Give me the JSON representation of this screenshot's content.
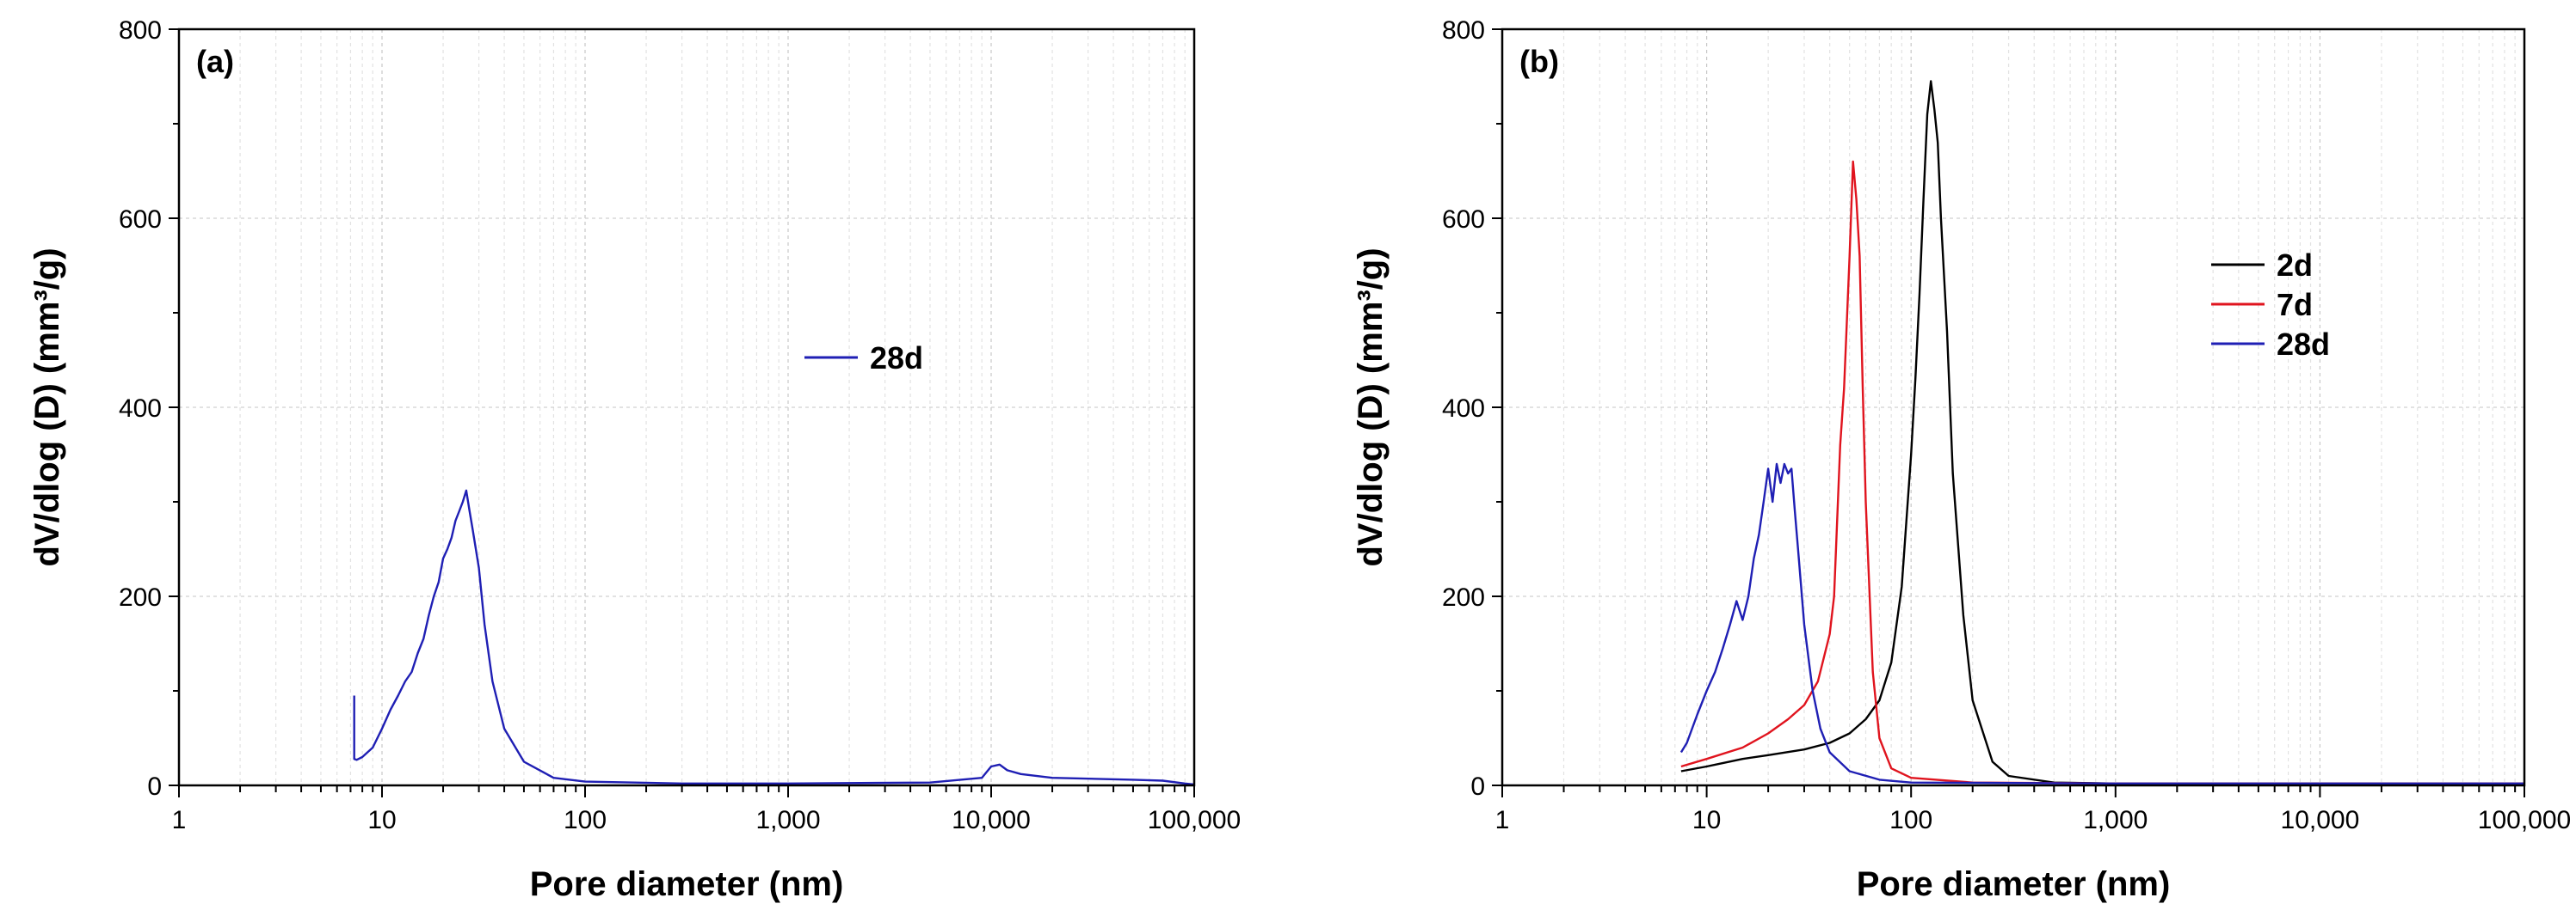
{
  "chart_data": [
    {
      "type": "line",
      "panel_label": "(a)",
      "xlabel": "Pore diameter (nm)",
      "ylabel": "dV/dlog (D) (mm³/g)",
      "x_scale": "log",
      "xlim": [
        1,
        100000
      ],
      "ylim": [
        0,
        800
      ],
      "x_ticks": [
        1,
        10,
        100,
        1000,
        10000,
        100000
      ],
      "x_tick_labels": [
        "1",
        "10",
        "100",
        "1,000",
        "10,000",
        "100,000"
      ],
      "y_ticks": [
        0,
        200,
        400,
        600,
        800
      ],
      "y_tick_labels": [
        "0",
        "200",
        "400",
        "600",
        "800"
      ],
      "grid": true,
      "legend_placement": "center-right",
      "series": [
        {
          "name": "28d",
          "color": "#1f1fb4",
          "points": [
            [
              7.3,
              95
            ],
            [
              7.3,
              28
            ],
            [
              7.5,
              27
            ],
            [
              8,
              30
            ],
            [
              9,
              40
            ],
            [
              10,
              60
            ],
            [
              11,
              80
            ],
            [
              12,
              95
            ],
            [
              13,
              110
            ],
            [
              14,
              120
            ],
            [
              15,
              140
            ],
            [
              16,
              155
            ],
            [
              17,
              180
            ],
            [
              18,
              200
            ],
            [
              19,
              215
            ],
            [
              20,
              240
            ],
            [
              21,
              250
            ],
            [
              22,
              262
            ],
            [
              23,
              280
            ],
            [
              24,
              290
            ],
            [
              25,
              300
            ],
            [
              26,
              312
            ],
            [
              27,
              290
            ],
            [
              28,
              270
            ],
            [
              30,
              230
            ],
            [
              32,
              170
            ],
            [
              35,
              110
            ],
            [
              40,
              60
            ],
            [
              50,
              25
            ],
            [
              70,
              8
            ],
            [
              100,
              4
            ],
            [
              300,
              2
            ],
            [
              1000,
              2
            ],
            [
              5000,
              3
            ],
            [
              9000,
              8
            ],
            [
              10000,
              20
            ],
            [
              11000,
              22
            ],
            [
              12000,
              16
            ],
            [
              14000,
              12
            ],
            [
              20000,
              8
            ],
            [
              50000,
              6
            ],
            [
              70000,
              5
            ],
            [
              90000,
              2
            ],
            [
              100000,
              1
            ]
          ]
        }
      ]
    },
    {
      "type": "line",
      "panel_label": "(b)",
      "xlabel": "Pore diameter (nm)",
      "ylabel": "dV/dlog (D) (mm³/g)",
      "x_scale": "log",
      "xlim": [
        1,
        100000
      ],
      "ylim": [
        0,
        800
      ],
      "x_ticks": [
        1,
        10,
        100,
        1000,
        10000,
        100000
      ],
      "x_tick_labels": [
        "1",
        "10",
        "100",
        "1,000",
        "10,000",
        "100,000"
      ],
      "y_ticks": [
        0,
        200,
        400,
        600,
        800
      ],
      "y_tick_labels": [
        "0",
        "200",
        "400",
        "600",
        "800"
      ],
      "grid": true,
      "legend_placement": "center-right",
      "series": [
        {
          "name": "2d",
          "color": "#000000",
          "points": [
            [
              7.5,
              15
            ],
            [
              10,
              20
            ],
            [
              15,
              28
            ],
            [
              20,
              32
            ],
            [
              30,
              38
            ],
            [
              40,
              45
            ],
            [
              50,
              55
            ],
            [
              60,
              70
            ],
            [
              70,
              90
            ],
            [
              80,
              130
            ],
            [
              90,
              210
            ],
            [
              100,
              350
            ],
            [
              105,
              430
            ],
            [
              110,
              520
            ],
            [
              115,
              620
            ],
            [
              120,
              710
            ],
            [
              125,
              745
            ],
            [
              130,
              715
            ],
            [
              135,
              680
            ],
            [
              140,
              600
            ],
            [
              150,
              480
            ],
            [
              160,
              330
            ],
            [
              180,
              180
            ],
            [
              200,
              90
            ],
            [
              250,
              25
            ],
            [
              300,
              10
            ],
            [
              500,
              3
            ],
            [
              1000,
              2
            ],
            [
              100000,
              2
            ]
          ]
        },
        {
          "name": "7d",
          "color": "#e0141e",
          "points": [
            [
              7.5,
              20
            ],
            [
              10,
              28
            ],
            [
              15,
              40
            ],
            [
              20,
              55
            ],
            [
              25,
              70
            ],
            [
              30,
              85
            ],
            [
              35,
              110
            ],
            [
              40,
              160
            ],
            [
              42,
              200
            ],
            [
              45,
              360
            ],
            [
              47,
              420
            ],
            [
              50,
              560
            ],
            [
              52,
              660
            ],
            [
              54,
              620
            ],
            [
              56,
              560
            ],
            [
              58,
              420
            ],
            [
              60,
              300
            ],
            [
              65,
              120
            ],
            [
              70,
              50
            ],
            [
              80,
              18
            ],
            [
              100,
              8
            ],
            [
              200,
              3
            ],
            [
              1000,
              2
            ],
            [
              100000,
              2
            ]
          ]
        },
        {
          "name": "28d",
          "color": "#1f1fb4",
          "points": [
            [
              7.5,
              35
            ],
            [
              8,
              45
            ],
            [
              9,
              75
            ],
            [
              10,
              100
            ],
            [
              11,
              120
            ],
            [
              12,
              145
            ],
            [
              13,
              170
            ],
            [
              14,
              195
            ],
            [
              15,
              175
            ],
            [
              16,
              200
            ],
            [
              17,
              240
            ],
            [
              18,
              265
            ],
            [
              19,
              300
            ],
            [
              20,
              335
            ],
            [
              21,
              300
            ],
            [
              22,
              340
            ],
            [
              23,
              320
            ],
            [
              24,
              340
            ],
            [
              25,
              330
            ],
            [
              26,
              335
            ],
            [
              27,
              290
            ],
            [
              28,
              250
            ],
            [
              30,
              170
            ],
            [
              33,
              100
            ],
            [
              36,
              60
            ],
            [
              40,
              35
            ],
            [
              50,
              15
            ],
            [
              70,
              6
            ],
            [
              100,
              3
            ],
            [
              1000,
              2
            ],
            [
              100000,
              2
            ]
          ]
        }
      ]
    }
  ]
}
